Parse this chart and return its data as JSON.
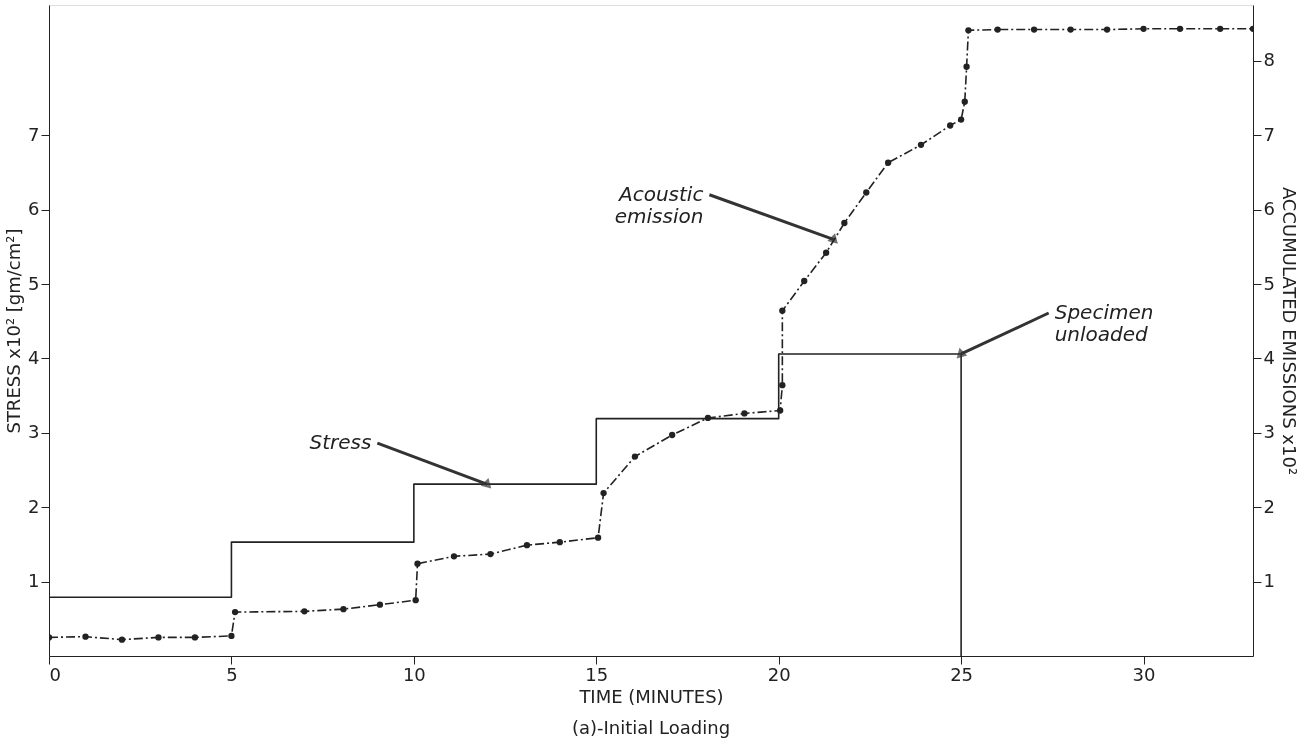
{
  "chart_data": {
    "type": "line",
    "xlabel": "TIME (MINUTES)",
    "ylabel": "STRESS x10² [gm/cm²]",
    "y2label": "ACCUMULATED EMISSIONS x10²",
    "xlim": [
      0,
      33
    ],
    "xticks": [
      0,
      5,
      10,
      15,
      20,
      25,
      30
    ],
    "ylim": [
      0,
      8.75
    ],
    "yticks": [
      1,
      2,
      3,
      4,
      5,
      6,
      7
    ],
    "y2lim": [
      0,
      8.75
    ],
    "y2ticks": [
      1,
      2,
      3,
      4,
      5,
      6,
      7,
      8
    ],
    "grid": false,
    "series": [
      {
        "type": "step",
        "color": "#222222",
        "marker": "none",
        "line_style": "solid",
        "x": [
          0,
          5,
          10,
          15,
          20,
          25
        ],
        "values": [
          0.79,
          1.53,
          2.31,
          3.19,
          4.06,
          0
        ]
      },
      {
        "axis": "y2",
        "color": "#222222",
        "marker": "circle",
        "line_style": "dashed",
        "x": [
          0,
          1,
          2,
          3,
          4,
          5,
          5.1,
          7,
          8.07,
          9.07,
          10.05,
          10.1,
          11.1,
          12.1,
          13.1,
          14.0,
          15.05,
          15.2,
          16.06,
          17.08,
          18.06,
          19.06,
          20.04,
          20.1,
          20.1,
          20.7,
          21.3,
          21.8,
          22.4,
          23.0,
          23.9,
          24.7,
          25.0,
          25.1,
          25.15,
          25.2,
          26.0,
          27.0,
          28.0,
          29.0,
          30.0,
          31.0,
          32.1,
          33.0
        ],
        "values": [
          0.25,
          0.26,
          0.22,
          0.25,
          0.25,
          0.27,
          0.59,
          0.6,
          0.63,
          0.69,
          0.75,
          1.24,
          1.34,
          1.37,
          1.49,
          1.53,
          1.59,
          2.19,
          2.68,
          2.97,
          3.2,
          3.26,
          3.3,
          3.64,
          4.64,
          5.04,
          5.42,
          5.82,
          6.23,
          6.63,
          6.87,
          7.13,
          7.21,
          7.45,
          7.92,
          8.41,
          8.42,
          8.42,
          8.42,
          8.42,
          8.43,
          8.43,
          8.43,
          8.43
        ]
      }
    ],
    "annotations": [
      {
        "text": "Stress",
        "x": 12,
        "y": 2.31
      },
      {
        "text": "Acoustic emission",
        "x": 21.5,
        "y": 5.6
      },
      {
        "text": "Specimen unloaded",
        "x": 25,
        "y": 4.06
      },
      "(a)-Initial Loading"
    ]
  }
}
